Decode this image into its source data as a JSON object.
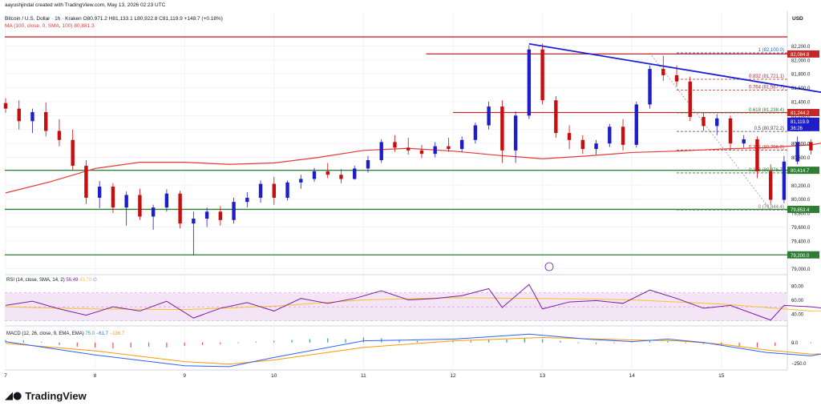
{
  "header": {
    "published": "aayushjindal created with TradingView.com, May 13, 2026 02:23 UTC",
    "symbol_line": "Bitcoin / U.S. Dollar · 1h · Kraken  O80,971.2  H81,133.1  L80,922.8  C81,119.9  +148.7 (+0.18%)",
    "ma_line": "MA (100, close, 0, SMA, 100)  80,881.3"
  },
  "currency": "USD",
  "brand": {
    "name": "TradingView"
  },
  "colors": {
    "up": "#1e1ec8",
    "down": "#c80e0e",
    "ma": "#e53935",
    "trend": "#1f1fd6",
    "hline_red": "#c62828",
    "hline_green": "#2e7d32",
    "fib": "#b71c1c",
    "rsi": "#7b1fa2"
  },
  "chart_data": [
    {
      "type": "candlestick",
      "title": "Bitcoin / U.S. Dollar · 1h · Kraken",
      "x_ticks": [
        "7",
        "8",
        "9",
        "10",
        "11",
        "12",
        "13",
        "14",
        "15"
      ],
      "y_ticks": [
        79000,
        79200,
        79400,
        79600,
        79800,
        80000,
        80200,
        80400,
        80600,
        80800,
        81000,
        81200,
        81400,
        81600,
        81800,
        82000,
        82200
      ],
      "ylim": [
        78950,
        82400
      ],
      "candles": [
        {
          "x": 0.0,
          "o": 81380,
          "h": 81450,
          "l": 81240,
          "c": 81300
        },
        {
          "x": 0.15,
          "o": 81300,
          "h": 81420,
          "l": 81000,
          "c": 81120
        },
        {
          "x": 0.3,
          "o": 81120,
          "h": 81300,
          "l": 80950,
          "c": 81250
        },
        {
          "x": 0.45,
          "o": 81250,
          "h": 81390,
          "l": 80900,
          "c": 80980
        },
        {
          "x": 0.6,
          "o": 80980,
          "h": 81150,
          "l": 80760,
          "c": 80850
        },
        {
          "x": 0.75,
          "o": 80850,
          "h": 81000,
          "l": 80420,
          "c": 80480
        },
        {
          "x": 0.9,
          "o": 80480,
          "h": 80560,
          "l": 79930,
          "c": 80020
        },
        {
          "x": 1.05,
          "o": 80020,
          "h": 80260,
          "l": 79870,
          "c": 80180
        },
        {
          "x": 1.2,
          "o": 80180,
          "h": 80230,
          "l": 79800,
          "c": 79880
        },
        {
          "x": 1.35,
          "o": 79880,
          "h": 80110,
          "l": 79620,
          "c": 80060
        },
        {
          "x": 1.5,
          "o": 80060,
          "h": 80150,
          "l": 79700,
          "c": 79750
        },
        {
          "x": 1.65,
          "o": 79750,
          "h": 79920,
          "l": 79560,
          "c": 79880
        },
        {
          "x": 1.8,
          "o": 79880,
          "h": 80140,
          "l": 79820,
          "c": 80080
        },
        {
          "x": 1.95,
          "o": 80080,
          "h": 80120,
          "l": 79580,
          "c": 79650
        },
        {
          "x": 2.1,
          "o": 79650,
          "h": 79820,
          "l": 79200,
          "c": 79720
        },
        {
          "x": 2.25,
          "o": 79720,
          "h": 79880,
          "l": 79600,
          "c": 79820
        },
        {
          "x": 2.4,
          "o": 79820,
          "h": 79900,
          "l": 79620,
          "c": 79700
        },
        {
          "x": 2.55,
          "o": 79700,
          "h": 80020,
          "l": 79650,
          "c": 79960
        },
        {
          "x": 2.7,
          "o": 79960,
          "h": 80100,
          "l": 79880,
          "c": 80020
        },
        {
          "x": 2.85,
          "o": 80020,
          "h": 80270,
          "l": 79950,
          "c": 80220
        },
        {
          "x": 3.0,
          "o": 80220,
          "h": 80320,
          "l": 79920,
          "c": 80020
        },
        {
          "x": 3.15,
          "o": 80020,
          "h": 80270,
          "l": 79980,
          "c": 80240
        },
        {
          "x": 3.3,
          "o": 80240,
          "h": 80350,
          "l": 80150,
          "c": 80290
        },
        {
          "x": 3.45,
          "o": 80290,
          "h": 80450,
          "l": 80250,
          "c": 80400
        },
        {
          "x": 3.6,
          "o": 80400,
          "h": 80520,
          "l": 80300,
          "c": 80350
        },
        {
          "x": 3.75,
          "o": 80350,
          "h": 80430,
          "l": 80230,
          "c": 80290
        },
        {
          "x": 3.9,
          "o": 80290,
          "h": 80480,
          "l": 80280,
          "c": 80440
        },
        {
          "x": 4.05,
          "o": 80440,
          "h": 80620,
          "l": 80380,
          "c": 80560
        },
        {
          "x": 4.2,
          "o": 80560,
          "h": 80860,
          "l": 80520,
          "c": 80820
        },
        {
          "x": 4.35,
          "o": 80820,
          "h": 80920,
          "l": 80680,
          "c": 80740
        },
        {
          "x": 4.5,
          "o": 80740,
          "h": 80880,
          "l": 80640,
          "c": 80700
        },
        {
          "x": 4.65,
          "o": 80700,
          "h": 80780,
          "l": 80590,
          "c": 80650
        },
        {
          "x": 4.8,
          "o": 80650,
          "h": 80820,
          "l": 80600,
          "c": 80760
        },
        {
          "x": 4.95,
          "o": 80760,
          "h": 80880,
          "l": 80680,
          "c": 80720
        },
        {
          "x": 5.1,
          "o": 80720,
          "h": 80900,
          "l": 80680,
          "c": 80850
        },
        {
          "x": 5.25,
          "o": 80850,
          "h": 81100,
          "l": 80800,
          "c": 81060
        },
        {
          "x": 5.4,
          "o": 81060,
          "h": 81400,
          "l": 81000,
          "c": 81330
        },
        {
          "x": 5.55,
          "o": 81330,
          "h": 81420,
          "l": 80520,
          "c": 80700
        },
        {
          "x": 5.7,
          "o": 80700,
          "h": 81260,
          "l": 80520,
          "c": 81200
        },
        {
          "x": 5.85,
          "o": 81200,
          "h": 82210,
          "l": 81150,
          "c": 82150
        },
        {
          "x": 6.0,
          "o": 82150,
          "h": 82230,
          "l": 81360,
          "c": 81420
        },
        {
          "x": 6.15,
          "o": 81420,
          "h": 81480,
          "l": 80880,
          "c": 80950
        },
        {
          "x": 6.3,
          "o": 80950,
          "h": 81060,
          "l": 80720,
          "c": 80850
        },
        {
          "x": 6.45,
          "o": 80850,
          "h": 80920,
          "l": 80650,
          "c": 80720
        },
        {
          "x": 6.6,
          "o": 80720,
          "h": 80850,
          "l": 80640,
          "c": 80800
        },
        {
          "x": 6.75,
          "o": 80800,
          "h": 81080,
          "l": 80750,
          "c": 81040
        },
        {
          "x": 6.9,
          "o": 81040,
          "h": 81150,
          "l": 80700,
          "c": 80780
        },
        {
          "x": 7.05,
          "o": 80780,
          "h": 81400,
          "l": 80740,
          "c": 81360
        },
        {
          "x": 7.2,
          "o": 81360,
          "h": 81920,
          "l": 81300,
          "c": 81870
        },
        {
          "x": 7.35,
          "o": 81870,
          "h": 82060,
          "l": 81700,
          "c": 81780
        },
        {
          "x": 7.5,
          "o": 81780,
          "h": 81920,
          "l": 81620,
          "c": 81690
        },
        {
          "x": 7.65,
          "o": 81690,
          "h": 81760,
          "l": 81120,
          "c": 81180
        },
        {
          "x": 7.8,
          "o": 81180,
          "h": 81240,
          "l": 80980,
          "c": 81050
        },
        {
          "x": 7.95,
          "o": 81050,
          "h": 81220,
          "l": 80920,
          "c": 81160
        },
        {
          "x": 8.1,
          "o": 81160,
          "h": 81200,
          "l": 80700,
          "c": 80800
        },
        {
          "x": 8.25,
          "o": 80800,
          "h": 80920,
          "l": 80740,
          "c": 80860
        },
        {
          "x": 8.4,
          "o": 80860,
          "h": 80900,
          "l": 80300,
          "c": 80400
        },
        {
          "x": 8.55,
          "o": 80400,
          "h": 80500,
          "l": 79920,
          "c": 79990
        },
        {
          "x": 8.7,
          "o": 79990,
          "h": 80620,
          "l": 79940,
          "c": 80540
        },
        {
          "x": 8.85,
          "o": 80540,
          "h": 80900,
          "l": 80500,
          "c": 80820
        },
        {
          "x": 9.0,
          "o": 80820,
          "h": 80860,
          "l": 80640,
          "c": 80700
        },
        {
          "x": 9.15,
          "o": 80700,
          "h": 80900,
          "l": 80650,
          "c": 80830
        },
        {
          "x": 9.3,
          "o": 80830,
          "h": 80870,
          "l": 80480,
          "c": 80530
        },
        {
          "x": 9.45,
          "o": 80530,
          "h": 81080,
          "l": 80500,
          "c": 81030
        },
        {
          "x": 9.6,
          "o": 81030,
          "h": 81140,
          "l": 80930,
          "c": 81120
        }
      ],
      "ma": [
        [
          0,
          80090
        ],
        [
          0.5,
          80250
        ],
        [
          1,
          80440
        ],
        [
          1.5,
          80530
        ],
        [
          2,
          80530
        ],
        [
          2.5,
          80500
        ],
        [
          3,
          80520
        ],
        [
          3.5,
          80600
        ],
        [
          4,
          80700
        ],
        [
          4.5,
          80730
        ],
        [
          5,
          80690
        ],
        [
          5.5,
          80630
        ],
        [
          6,
          80580
        ],
        [
          6.5,
          80620
        ],
        [
          7,
          80670
        ],
        [
          7.5,
          80690
        ],
        [
          8,
          80720
        ],
        [
          8.5,
          80740
        ],
        [
          9,
          80780
        ],
        [
          9.3,
          80840
        ],
        [
          9.6,
          80881
        ]
      ],
      "trend_line": {
        "x1": 5.85,
        "y1": 82230,
        "x2": 10.5,
        "y2": 81240
      },
      "horizontal_levels": [
        {
          "value": 82084.8,
          "label": "82,084.8",
          "color": "#c62828",
          "x_start": 4.7
        },
        {
          "value": 81244.2,
          "label": "81,244.2",
          "color": "#c62828",
          "x_start": 5.0
        },
        {
          "value": 80414.7,
          "label": "80,414.7",
          "color": "#2e7d32",
          "x_start": 0
        },
        {
          "value": 79853.4,
          "label": "79,853.4",
          "color": "#2e7d32",
          "x_start": 0
        },
        {
          "value": 79200.0,
          "label": "79,200.0",
          "color": "#2e7d32",
          "x_start": 0
        }
      ],
      "top_line": {
        "value": 82330
      },
      "last_price": {
        "value": 81119.9,
        "label": "81,119.9",
        "countdown": "36:26"
      },
      "fib": {
        "x_start": 7.5,
        "levels": [
          {
            "ratio": "1",
            "value": 82100.0,
            "label": "1 (82,100.0)",
            "color": "#1565c0"
          },
          {
            "ratio": "0.832",
            "value": 81721.1,
            "label": "0.832 (81,721.1)",
            "color": "#c62828"
          },
          {
            "ratio": "0.764",
            "value": 81567.7,
            "label": "0.764 (81,567.7)",
            "color": "#c62828"
          },
          {
            "ratio": "0.618",
            "value": 81238.4,
            "label": "0.618 (81,238.4)",
            "color": "#2e7d32"
          },
          {
            "ratio": "0.5",
            "value": 80972.2,
            "label": "0.5 (80,972.2)",
            "color": "#444444"
          },
          {
            "ratio": "0.382",
            "value": 80706.0,
            "label": "0.382 (80,706.0)",
            "color": "#c62828"
          },
          {
            "ratio": "0.236",
            "value": 80376.7,
            "label": "0.236 (80,376.7)",
            "color": "#2e7d32"
          },
          {
            "ratio": "0",
            "value": 79844.4,
            "label": "0 (79,844.4)",
            "color": "#777777"
          }
        ]
      }
    },
    {
      "type": "line",
      "title": "RSI (14, close, SMA, 14, 2)",
      "legend_values": [
        "56.49",
        "43.70",
        "∅"
      ],
      "y_ticks": [
        "40.00",
        "60.00",
        "80.00"
      ],
      "ylim": [
        25,
        88
      ],
      "band": [
        30,
        70
      ],
      "rsi": [
        [
          0,
          52
        ],
        [
          0.3,
          58
        ],
        [
          0.6,
          47
        ],
        [
          0.9,
          38
        ],
        [
          1.2,
          50
        ],
        [
          1.5,
          44
        ],
        [
          1.8,
          58
        ],
        [
          2.1,
          34
        ],
        [
          2.4,
          48
        ],
        [
          2.7,
          56
        ],
        [
          3,
          44
        ],
        [
          3.3,
          62
        ],
        [
          3.6,
          55
        ],
        [
          3.9,
          62
        ],
        [
          4.2,
          73
        ],
        [
          4.5,
          60
        ],
        [
          4.8,
          62
        ],
        [
          5.1,
          66
        ],
        [
          5.4,
          76
        ],
        [
          5.55,
          49
        ],
        [
          5.85,
          82
        ],
        [
          6.0,
          47
        ],
        [
          6.3,
          57
        ],
        [
          6.6,
          59
        ],
        [
          6.9,
          55
        ],
        [
          7.2,
          74
        ],
        [
          7.5,
          62
        ],
        [
          7.8,
          48
        ],
        [
          8.1,
          52
        ],
        [
          8.4,
          38
        ],
        [
          8.55,
          31
        ],
        [
          8.7,
          52
        ],
        [
          9.0,
          50
        ],
        [
          9.3,
          46
        ],
        [
          9.6,
          56
        ]
      ],
      "rsi_ma": [
        [
          0,
          50
        ],
        [
          1,
          47
        ],
        [
          2,
          46
        ],
        [
          3,
          51
        ],
        [
          4,
          60
        ],
        [
          5,
          63
        ],
        [
          6,
          62
        ],
        [
          7,
          60
        ],
        [
          8,
          54
        ],
        [
          9,
          44
        ],
        [
          9.6,
          46
        ]
      ]
    },
    {
      "type": "bar",
      "title": "MACD (12, 26, close, 9, EMA, EMA)",
      "legend_values": [
        "75.0",
        "−61.7",
        "−136.7"
      ],
      "y_ticks": [
        "0.0",
        "−250.0"
      ],
      "ylim": [
        -330,
        170
      ],
      "macd": [
        [
          0,
          10
        ],
        [
          1,
          -150
        ],
        [
          2,
          -280
        ],
        [
          2.5,
          -290
        ],
        [
          3,
          -180
        ],
        [
          4,
          20
        ],
        [
          5,
          40
        ],
        [
          5.85,
          100
        ],
        [
          6.5,
          40
        ],
        [
          7,
          10
        ],
        [
          7.4,
          40
        ],
        [
          7.8,
          0
        ],
        [
          8.5,
          -120
        ],
        [
          9.0,
          -160
        ],
        [
          9.6,
          -50
        ]
      ],
      "signal": [
        [
          0,
          -10
        ],
        [
          1,
          -100
        ],
        [
          2,
          -230
        ],
        [
          2.5,
          -260
        ],
        [
          3,
          -210
        ],
        [
          4,
          -60
        ],
        [
          5,
          20
        ],
        [
          6,
          60
        ],
        [
          7,
          30
        ],
        [
          7.5,
          20
        ],
        [
          8.0,
          -20
        ],
        [
          8.5,
          -90
        ],
        [
          9.0,
          -140
        ],
        [
          9.6,
          -120
        ]
      ],
      "histogram": [
        [
          0,
          30
        ],
        [
          0.2,
          25
        ],
        [
          0.4,
          10
        ],
        [
          0.6,
          -30
        ],
        [
          0.8,
          -50
        ],
        [
          1.0,
          -60
        ],
        [
          1.2,
          -70
        ],
        [
          1.4,
          -60
        ],
        [
          1.6,
          -50
        ],
        [
          1.8,
          -60
        ],
        [
          2.0,
          -40
        ],
        [
          2.2,
          -30
        ],
        [
          2.4,
          -20
        ],
        [
          2.6,
          -10
        ],
        [
          2.8,
          10
        ],
        [
          3.0,
          20
        ],
        [
          3.2,
          30
        ],
        [
          3.4,
          40
        ],
        [
          3.6,
          50
        ],
        [
          3.8,
          40
        ],
        [
          4.0,
          60
        ],
        [
          4.2,
          50
        ],
        [
          4.4,
          30
        ],
        [
          4.6,
          20
        ],
        [
          4.8,
          10
        ],
        [
          5.0,
          15
        ],
        [
          5.2,
          20
        ],
        [
          5.4,
          30
        ],
        [
          5.6,
          35
        ],
        [
          5.8,
          55
        ],
        [
          6.0,
          40
        ],
        [
          6.2,
          20
        ],
        [
          6.4,
          -10
        ],
        [
          6.6,
          -20
        ],
        [
          6.8,
          -10
        ],
        [
          7.0,
          10
        ],
        [
          7.2,
          20
        ],
        [
          7.4,
          15
        ],
        [
          7.6,
          -10
        ],
        [
          7.8,
          -20
        ],
        [
          8.0,
          -40
        ],
        [
          8.2,
          -50
        ],
        [
          8.4,
          -60
        ],
        [
          8.6,
          -40
        ],
        [
          8.8,
          -20
        ],
        [
          9.0,
          -10
        ],
        [
          9.2,
          30
        ],
        [
          9.4,
          50
        ],
        [
          9.6,
          75
        ]
      ]
    }
  ]
}
